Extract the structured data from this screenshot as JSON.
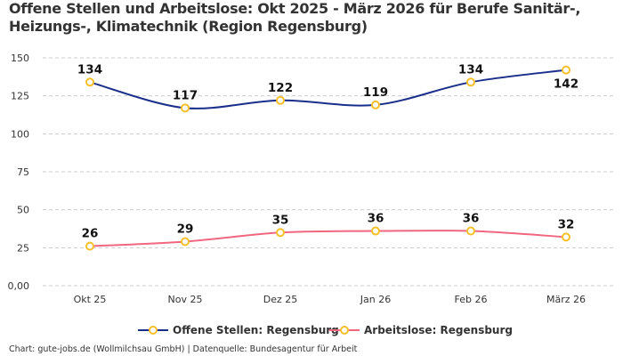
{
  "chart_data": {
    "type": "line",
    "title": "Offene Stellen und Arbeitslose: Okt 2025 - März 2026 für Berufe Sanitär-, Heizungs-, Klimatechnik (Region Regensburg)",
    "categories": [
      "Okt 25",
      "Nov 25",
      "Dez 25",
      "Jan 26",
      "Feb 26",
      "März 26"
    ],
    "series": [
      {
        "name": "Offene Stellen: Regensburg",
        "values": [
          134,
          117,
          122,
          119,
          134,
          142
        ],
        "color": "#1a2f8a"
      },
      {
        "name": "Arbeitslose: Regensburg",
        "values": [
          26,
          29,
          35,
          36,
          36,
          32
        ],
        "color": "#f0677f"
      }
    ],
    "marker_color": "#f5c02a",
    "yticks": [
      "0,00",
      "25",
      "50",
      "75",
      "100",
      "125",
      "150"
    ],
    "ylim": [
      0,
      150
    ],
    "grid": true,
    "legend_position": "bottom",
    "credit": "Chart: gute-jobs.de (Wollmilchsau GmbH) | Datenquelle: Bundesagentur für Arbeit"
  }
}
